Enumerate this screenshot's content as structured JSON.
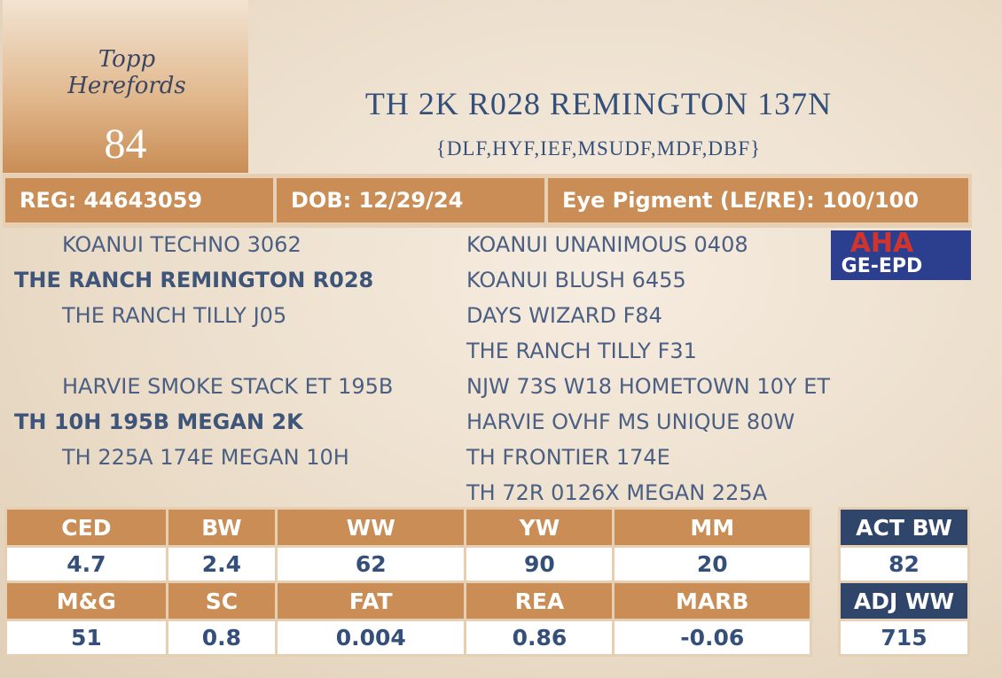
{
  "logo": {
    "farm": "Topp Herefords",
    "association": "AHA",
    "program": "GE-EPD"
  },
  "lot": "84",
  "title": "TH 2K R028 REMINGTON 137N",
  "subtitle": "{DLF,HYF,IEF,MSUDF,MDF,DBF}",
  "info": [
    "REG: 44643059",
    "DOB: 12/29/24",
    "Eye Pigment (LE/RE): 100/100"
  ],
  "pedigree": {
    "sire": {
      "sire": "KOANUI TECHNO 3062",
      "name": "THE RANCH REMINGTON R028",
      "dam": "THE RANCH TILLY J05"
    },
    "dam": {
      "sire": "HARVIE SMOKE STACK ET 195B",
      "name": "TH 10H 195B MEGAN 2K",
      "dam": "TH 225A 174E MEGAN 10H"
    },
    "great_grandparents": [
      "KOANUI UNANIMOUS 0408",
      "KOANUI BLUSH 6455",
      "DAYS WIZARD F84",
      "THE RANCH TILLY F31",
      "NJW 73S W18 HOMETOWN 10Y ET",
      "HARVIE OVHF MS UNIQUE 80W",
      "TH FRONTIER 174E",
      "TH 72R 0126X MEGAN 225A"
    ]
  },
  "epd_table": {
    "rows": [
      [
        "CED",
        "BW",
        "WW",
        "YW",
        "MM"
      ],
      [
        "4.7",
        "2.4",
        "62",
        "90",
        "20"
      ],
      [
        "M&G",
        "SC",
        "FAT",
        "REA",
        "MARB"
      ],
      [
        "51",
        "0.8",
        "0.004",
        "0.86",
        "-0.06"
      ]
    ]
  },
  "actual_table": {
    "rows": [
      [
        "ACT BW"
      ],
      [
        "82"
      ],
      [
        "ADJ WW"
      ],
      [
        "715"
      ]
    ]
  }
}
